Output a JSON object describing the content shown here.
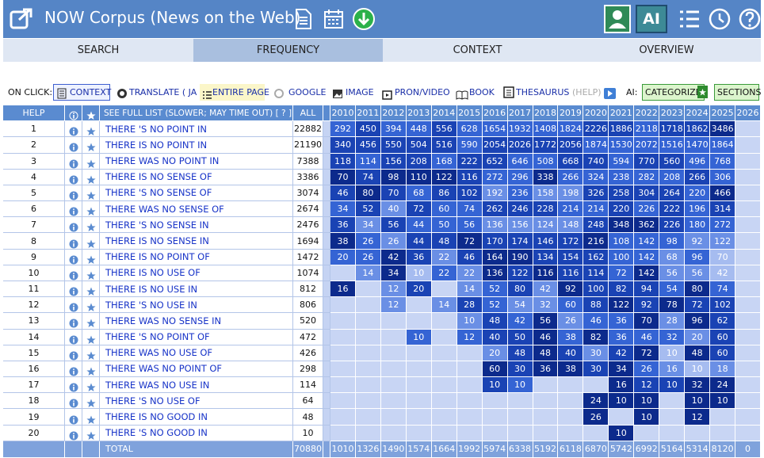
{
  "header": {
    "title": "NOW Corpus (News on the Web)",
    "ai_button": "AI"
  },
  "tabs": [
    "SEARCH",
    "FREQUENCY",
    "CONTEXT",
    "OVERVIEW"
  ],
  "toolbar": {
    "on_click": "ON CLICK:",
    "context": "CONTEXT",
    "translate": "TRANSLATE ( JA )",
    "entire_page": "ENTIRE PAGE",
    "google": "GOOGLE",
    "image": "IMAGE",
    "pron_video": "PRON/VIDEO",
    "book": "BOOK",
    "thesaurus": "THESAURUS",
    "help": "(HELP)",
    "ai": "AI:",
    "categorize": "CATEGORIZE",
    "sections": "SECTIONS"
  },
  "table": {
    "help": "HELP",
    "see_full_list": "SEE FULL LIST (SLOWER; MAY TIME OUT)  [ ? ]",
    "all": "ALL",
    "years": [
      2010,
      2011,
      2012,
      2013,
      2014,
      2015,
      2016,
      2017,
      2018,
      2019,
      2020,
      2021,
      2022,
      2023,
      2024,
      2025,
      2026
    ],
    "rows": [
      {
        "n": 1,
        "phrase": "THERE 'S NO POINT IN",
        "all": 22882,
        "years": [
          292,
          450,
          394,
          448,
          556,
          628,
          1654,
          1932,
          1408,
          1824,
          2226,
          1886,
          2118,
          1718,
          1862,
          3486,
          null
        ]
      },
      {
        "n": 2,
        "phrase": "THERE IS NO POINT IN",
        "all": 21190,
        "years": [
          340,
          456,
          550,
          504,
          516,
          590,
          2054,
          2026,
          1772,
          2056,
          1874,
          1530,
          2072,
          1516,
          1470,
          1864,
          null
        ]
      },
      {
        "n": 3,
        "phrase": "THERE WAS NO POINT IN",
        "all": 7388,
        "years": [
          118,
          114,
          156,
          208,
          168,
          222,
          652,
          646,
          508,
          668,
          740,
          594,
          770,
          560,
          496,
          768,
          null
        ]
      },
      {
        "n": 4,
        "phrase": "THERE IS NO SENSE OF",
        "all": 3386,
        "years": [
          70,
          74,
          98,
          110,
          122,
          116,
          272,
          296,
          338,
          266,
          324,
          238,
          282,
          208,
          266,
          306,
          null
        ]
      },
      {
        "n": 5,
        "phrase": "THERE 'S NO SENSE OF",
        "all": 3074,
        "years": [
          46,
          80,
          70,
          68,
          86,
          102,
          192,
          236,
          158,
          198,
          326,
          258,
          304,
          264,
          220,
          466,
          null
        ]
      },
      {
        "n": 6,
        "phrase": "THERE WAS NO SENSE OF",
        "all": 2674,
        "years": [
          34,
          52,
          40,
          72,
          60,
          74,
          262,
          246,
          228,
          214,
          214,
          220,
          226,
          222,
          196,
          314,
          null
        ]
      },
      {
        "n": 7,
        "phrase": "THERE 'S NO SENSE IN",
        "all": 2476,
        "years": [
          36,
          34,
          56,
          44,
          50,
          56,
          136,
          156,
          124,
          148,
          248,
          348,
          362,
          226,
          180,
          272,
          null
        ]
      },
      {
        "n": 8,
        "phrase": "THERE IS NO SENSE IN",
        "all": 1694,
        "years": [
          38,
          26,
          26,
          44,
          48,
          72,
          170,
          174,
          146,
          172,
          216,
          108,
          142,
          98,
          92,
          122,
          null
        ]
      },
      {
        "n": 9,
        "phrase": "THERE IS NO POINT OF",
        "all": 1472,
        "years": [
          20,
          26,
          42,
          36,
          22,
          46,
          164,
          190,
          134,
          154,
          162,
          100,
          142,
          68,
          96,
          70,
          null
        ]
      },
      {
        "n": 10,
        "phrase": "THERE IS NO USE OF",
        "all": 1074,
        "years": [
          null,
          14,
          34,
          10,
          22,
          22,
          136,
          122,
          116,
          116,
          114,
          72,
          142,
          56,
          56,
          42,
          null
        ]
      },
      {
        "n": 11,
        "phrase": "THERE IS NO USE IN",
        "all": 812,
        "years": [
          16,
          null,
          12,
          20,
          null,
          14,
          52,
          80,
          42,
          92,
          100,
          82,
          94,
          54,
          80,
          74,
          null
        ]
      },
      {
        "n": 12,
        "phrase": "THERE 'S NO USE IN",
        "all": 806,
        "years": [
          null,
          null,
          12,
          null,
          14,
          28,
          52,
          54,
          32,
          60,
          88,
          122,
          92,
          78,
          72,
          102,
          null
        ]
      },
      {
        "n": 13,
        "phrase": "THERE WAS NO SENSE IN",
        "all": 520,
        "years": [
          null,
          null,
          null,
          null,
          null,
          10,
          48,
          42,
          56,
          26,
          46,
          36,
          70,
          28,
          96,
          62,
          null
        ]
      },
      {
        "n": 14,
        "phrase": "THERE 'S NO POINT OF",
        "all": 472,
        "years": [
          null,
          null,
          null,
          10,
          null,
          12,
          40,
          50,
          46,
          38,
          82,
          36,
          46,
          32,
          20,
          60,
          null
        ]
      },
      {
        "n": 15,
        "phrase": "THERE WAS NO USE OF",
        "all": 426,
        "years": [
          null,
          null,
          null,
          null,
          null,
          null,
          20,
          48,
          48,
          40,
          30,
          42,
          72,
          10,
          48,
          60,
          null
        ]
      },
      {
        "n": 16,
        "phrase": "THERE WAS NO POINT OF",
        "all": 298,
        "years": [
          null,
          null,
          null,
          null,
          null,
          null,
          60,
          30,
          36,
          38,
          30,
          34,
          26,
          16,
          10,
          18,
          null
        ]
      },
      {
        "n": 17,
        "phrase": "THERE WAS NO USE IN",
        "all": 114,
        "years": [
          null,
          null,
          null,
          null,
          null,
          null,
          10,
          10,
          null,
          null,
          null,
          16,
          12,
          10,
          32,
          24,
          null
        ]
      },
      {
        "n": 18,
        "phrase": "THERE 'S NO USE OF",
        "all": 64,
        "years": [
          null,
          null,
          null,
          null,
          null,
          null,
          null,
          null,
          null,
          null,
          24,
          10,
          10,
          null,
          10,
          10,
          null
        ]
      },
      {
        "n": 19,
        "phrase": "THERE IS NO GOOD IN",
        "all": 48,
        "years": [
          null,
          null,
          null,
          null,
          null,
          null,
          null,
          null,
          null,
          null,
          26,
          null,
          10,
          null,
          12,
          null,
          null
        ]
      },
      {
        "n": 20,
        "phrase": "THERE 'S NO GOOD IN",
        "all": 10,
        "years": [
          null,
          null,
          null,
          null,
          null,
          null,
          null,
          null,
          null,
          null,
          null,
          10,
          null,
          null,
          null,
          null,
          null
        ]
      }
    ],
    "total": {
      "label": "TOTAL",
      "all": 70880,
      "years": [
        1010,
        1326,
        1490,
        1574,
        1664,
        1992,
        5974,
        6338,
        5192,
        6118,
        6870,
        5742,
        6992,
        5164,
        5314,
        8120,
        0
      ]
    }
  }
}
